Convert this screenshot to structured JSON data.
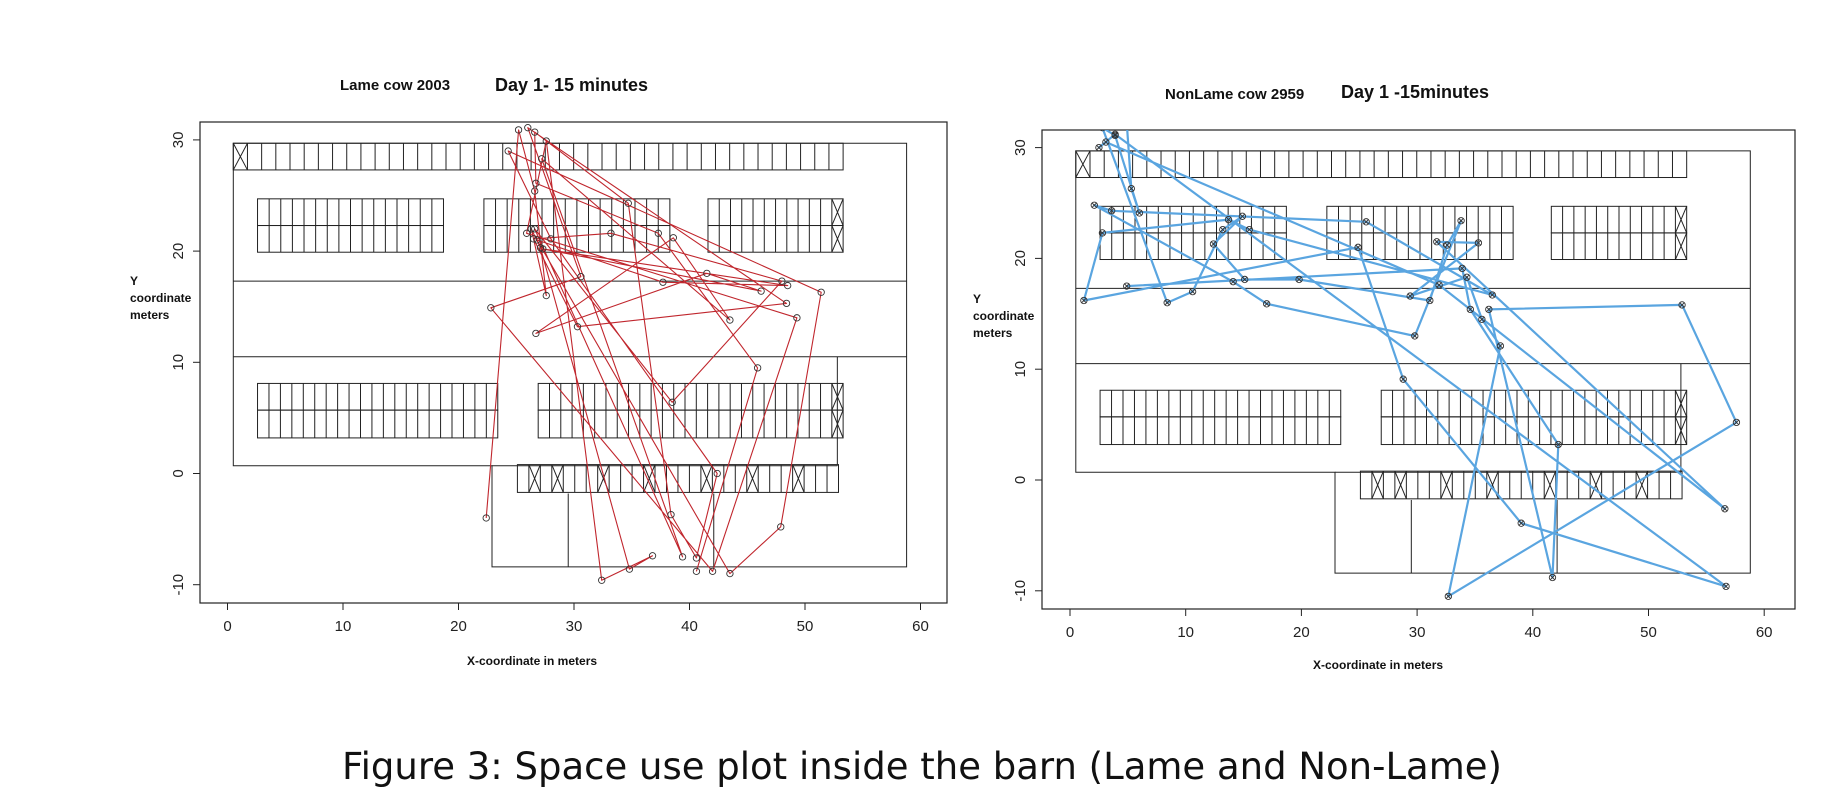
{
  "caption": "Figure 3: Space use plot inside the barn (Lame and Non-Lame)",
  "chart_data": [
    {
      "type": "line",
      "title_left": "Lame cow 2003",
      "title_right": "Day 1- 15 minutes",
      "xlabel": "X-coordinate in meters",
      "ylabel": "Y coordinate meters",
      "xlim": [
        -2,
        63
      ],
      "ylim": [
        -11.5,
        31.5
      ],
      "xticks": [
        "0",
        "10",
        "20",
        "30",
        "40",
        "50",
        "60"
      ],
      "yticks": [
        "-10",
        "0",
        "10",
        "20",
        "30"
      ],
      "series": [
        {
          "color": "#c0262d",
          "points": [
            [
              22.4,
              -4.0
            ],
            [
              25.2,
              30.9
            ],
            [
              26.6,
              25.4
            ],
            [
              27.6,
              16.0
            ],
            [
              26.3,
              22.0
            ],
            [
              27.1,
              20.3
            ],
            [
              34.8,
              -8.6
            ],
            [
              36.8,
              -7.4
            ],
            [
              32.4,
              -9.6
            ],
            [
              27.6,
              29.9
            ],
            [
              25.9,
              21.6
            ],
            [
              49.3,
              14.0
            ],
            [
              42.0,
              -8.8
            ],
            [
              22.8,
              14.9
            ],
            [
              30.6,
              17.7
            ],
            [
              26.0,
              31.1
            ],
            [
              48.4,
              15.3
            ],
            [
              30.3,
              13.2
            ],
            [
              26.5,
              21.1
            ],
            [
              33.2,
              21.6
            ],
            [
              48.0,
              17.3
            ],
            [
              38.5,
              6.4
            ],
            [
              26.6,
              22.0
            ],
            [
              39.4,
              -7.5
            ],
            [
              27.2,
              28.3
            ],
            [
              43.5,
              13.8
            ],
            [
              38.6,
              21.2
            ],
            [
              26.7,
              12.6
            ],
            [
              41.5,
              18.0
            ],
            [
              46.2,
              16.4
            ],
            [
              27.3,
              20.2
            ],
            [
              48.5,
              16.9
            ],
            [
              37.7,
              17.2
            ],
            [
              26.8,
              21.0
            ],
            [
              43.5,
              -9.0
            ],
            [
              47.9,
              -4.8
            ],
            [
              51.4,
              16.3
            ],
            [
              24.3,
              29.0
            ],
            [
              28.0,
              21.1
            ],
            [
              42.4,
              0.0
            ],
            [
              40.6,
              -7.6
            ],
            [
              38.4,
              -3.7
            ],
            [
              34.7,
              24.3
            ],
            [
              26.6,
              30.7
            ],
            [
              26.7,
              26.1
            ],
            [
              37.3,
              21.6
            ],
            [
              45.9,
              9.5
            ],
            [
              40.6,
              -8.8
            ]
          ]
        }
      ]
    },
    {
      "type": "line",
      "title_left": "NonLame cow 2959",
      "title_right": "Day 1 -15minutes",
      "xlabel": "X-coordinate in meters",
      "ylabel": "Y coordinate meters",
      "xlim": [
        -2,
        63
      ],
      "ylim": [
        -11.5,
        31.5
      ],
      "xticks": [
        "0",
        "10",
        "20",
        "30",
        "40",
        "50",
        "60"
      ],
      "yticks": [
        "-10",
        "0",
        "10",
        "20",
        "30"
      ],
      "series": [
        {
          "color": "#5aa5e0",
          "points": [
            [
              4.9,
              32.3
            ],
            [
              5.3,
              26.3
            ],
            [
              6.0,
              24.1
            ],
            [
              3.9,
              31.1
            ],
            [
              2.8,
              31.8
            ],
            [
              8.4,
              16.0
            ],
            [
              10.6,
              17.0
            ],
            [
              13.2,
              22.6
            ],
            [
              14.9,
              23.8
            ],
            [
              12.4,
              21.3
            ],
            [
              15.1,
              18.1
            ],
            [
              19.8,
              18.1
            ],
            [
              31.1,
              16.2
            ],
            [
              32.6,
              21.2
            ],
            [
              33.8,
              23.4
            ],
            [
              29.8,
              13.0
            ],
            [
              17.0,
              15.9
            ],
            [
              14.1,
              17.9
            ],
            [
              2.1,
              24.8
            ],
            [
              3.6,
              24.3
            ],
            [
              25.6,
              23.3
            ],
            [
              36.5,
              16.7
            ],
            [
              15.5,
              22.6
            ],
            [
              13.7,
              23.5
            ],
            [
              2.8,
              22.3
            ],
            [
              1.2,
              16.2
            ],
            [
              24.9,
              21.0
            ],
            [
              28.8,
              9.1
            ],
            [
              39.0,
              -3.9
            ],
            [
              56.7,
              -9.6
            ],
            [
              3.9,
              31.2
            ],
            [
              2.5,
              30.0
            ],
            [
              3.1,
              30.5
            ],
            [
              31.9,
              17.6
            ],
            [
              56.6,
              -2.6
            ],
            [
              31.7,
              21.5
            ],
            [
              35.3,
              21.4
            ],
            [
              29.4,
              16.6
            ],
            [
              34.3,
              18.3
            ],
            [
              35.6,
              14.5
            ],
            [
              37.2,
              12.1
            ],
            [
              32.7,
              -10.5
            ],
            [
              57.6,
              5.2
            ],
            [
              52.9,
              15.8
            ],
            [
              36.2,
              15.4
            ],
            [
              41.7,
              -8.8
            ],
            [
              42.2,
              3.2
            ],
            [
              34.6,
              15.4
            ],
            [
              33.9,
              19.1
            ],
            [
              4.9,
              17.5
            ]
          ]
        }
      ]
    }
  ]
}
